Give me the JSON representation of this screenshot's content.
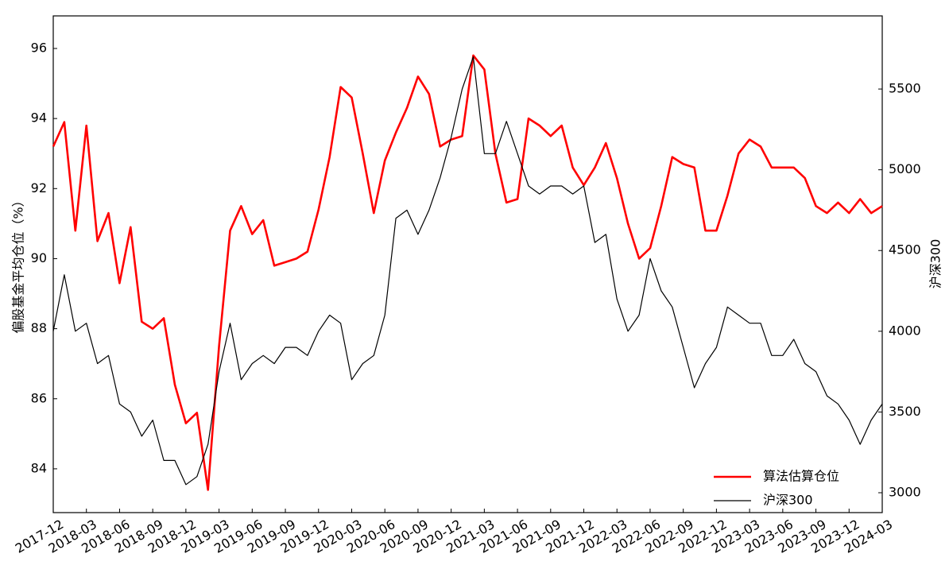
{
  "chart_data": {
    "type": "line",
    "y_label": "偏股基金平均仓位（%）",
    "y2_label": "沪深300",
    "x": [
      "2017-12",
      "2018-01",
      "2018-02",
      "2018-03",
      "2018-04",
      "2018-05",
      "2018-06",
      "2018-07",
      "2018-08",
      "2018-09",
      "2018-10",
      "2018-11",
      "2018-12",
      "2019-01",
      "2019-02",
      "2019-03",
      "2019-04",
      "2019-05",
      "2019-06",
      "2019-07",
      "2019-08",
      "2019-09",
      "2019-10",
      "2019-11",
      "2019-12",
      "2020-01",
      "2020-02",
      "2020-03",
      "2020-04",
      "2020-05",
      "2020-06",
      "2020-07",
      "2020-08",
      "2020-09",
      "2020-10",
      "2020-11",
      "2020-12",
      "2021-01",
      "2021-02",
      "2021-03",
      "2021-04",
      "2021-05",
      "2021-06",
      "2021-07",
      "2021-08",
      "2021-09",
      "2021-10",
      "2021-11",
      "2021-12",
      "2022-01",
      "2022-02",
      "2022-03",
      "2022-04",
      "2022-05",
      "2022-06",
      "2022-07",
      "2022-08",
      "2022-09",
      "2022-10",
      "2022-11",
      "2022-12",
      "2023-01",
      "2023-02",
      "2023-03",
      "2023-04",
      "2023-05",
      "2023-06",
      "2023-07",
      "2023-08",
      "2023-09",
      "2023-10",
      "2023-11",
      "2023-12",
      "2024-01",
      "2024-02",
      "2024-03"
    ],
    "series": [
      {
        "name": "算法估算仓位",
        "color": "#ff0000",
        "width": 2.6,
        "values": [
          93.2,
          93.9,
          90.8,
          93.8,
          90.5,
          91.3,
          89.3,
          90.9,
          88.2,
          88.0,
          88.3,
          86.4,
          85.3,
          85.6,
          83.4,
          87.5,
          90.8,
          91.5,
          90.7,
          91.1,
          89.8,
          89.9,
          90.0,
          90.2,
          91.4,
          92.9,
          94.9,
          94.6,
          93.0,
          91.3,
          92.8,
          93.6,
          94.3,
          95.2,
          94.7,
          93.2,
          93.4,
          93.5,
          95.8,
          95.4,
          93.0,
          91.6,
          91.7,
          94.0,
          93.8,
          93.5,
          93.8,
          92.6,
          92.1,
          92.6,
          93.3,
          92.3,
          91.0,
          90.0,
          90.3,
          91.5,
          92.9,
          92.7,
          92.6,
          90.8,
          90.8,
          91.8,
          93.0,
          93.4,
          93.2,
          92.6,
          92.6,
          92.6,
          92.3,
          91.5,
          91.3,
          91.6,
          91.3,
          91.7,
          91.3,
          91.5
        ]
      },
      {
        "name": "沪深300",
        "color": "#000000",
        "width": 1.2,
        "axis": "y2",
        "values": [
          4000,
          4350,
          4000,
          4050,
          3800,
          3850,
          3550,
          3500,
          3350,
          3450,
          3200,
          3200,
          3050,
          3100,
          3300,
          3750,
          4050,
          3700,
          3800,
          3850,
          3800,
          3900,
          3900,
          3850,
          4000,
          4100,
          4050,
          3700,
          3800,
          3850,
          4100,
          4700,
          4750,
          4600,
          4750,
          4950,
          5200,
          5500,
          5700,
          5100,
          5100,
          5300,
          5100,
          4900,
          4850,
          4900,
          4900,
          4850,
          4900,
          4550,
          4600,
          4200,
          4000,
          4100,
          4450,
          4250,
          4150,
          3900,
          3650,
          3800,
          3900,
          4150,
          4100,
          4050,
          4050,
          3850,
          3850,
          3950,
          3800,
          3750,
          3600,
          3550,
          3450,
          3300,
          3450,
          3550
        ]
      }
    ],
    "xlim": [
      "2017-12",
      "2024-03"
    ],
    "xticks": [
      "2017-12",
      "2018-03",
      "2018-06",
      "2018-09",
      "2018-12",
      "2019-03",
      "2019-06",
      "2019-09",
      "2019-12",
      "2020-03",
      "2020-06",
      "2020-09",
      "2020-12",
      "2021-03",
      "2021-06",
      "2021-09",
      "2021-12",
      "2022-03",
      "2022-06",
      "2022-09",
      "2022-12",
      "2023-03",
      "2023-06",
      "2023-09",
      "2023-12",
      "2024-03"
    ],
    "ylim": [
      82.75,
      96.93
    ],
    "yticks": [
      84,
      86,
      88,
      90,
      92,
      94,
      96
    ],
    "y2lim": [
      2877,
      5953
    ],
    "y2ticks": [
      3000,
      3500,
      4000,
      4500,
      5000,
      5500
    ],
    "legend": "lower right"
  }
}
